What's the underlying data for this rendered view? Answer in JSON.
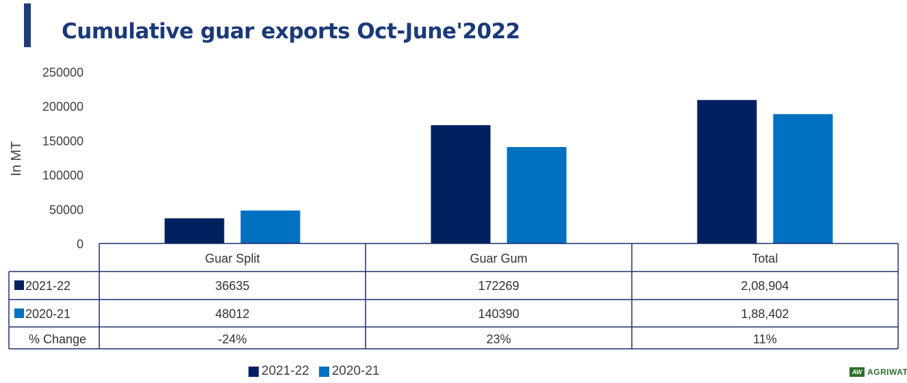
{
  "chart_data": {
    "type": "bar",
    "title": "Cumulative guar exports Oct-June'2022",
    "ylabel": "In MT",
    "ylim": [
      0,
      250000
    ],
    "yticks": [
      0,
      50000,
      100000,
      150000,
      200000,
      250000
    ],
    "categories": [
      "Guar Split",
      "Guar Gum",
      "Total"
    ],
    "series": [
      {
        "name": "2021-22",
        "values": [
          36635,
          172269,
          208904
        ],
        "labels": [
          "36635",
          "172269",
          "2,08,904"
        ],
        "color": "#002060"
      },
      {
        "name": "2020-21",
        "values": [
          48012,
          140390,
          188402
        ],
        "labels": [
          "48012",
          "140390",
          "1,88,402"
        ],
        "color": "#0070c0"
      }
    ],
    "table_extra_row": {
      "name": "% Change",
      "labels": [
        "-24%",
        "23%",
        "11%"
      ]
    },
    "legend": "bottom",
    "grid": false
  },
  "brand": {
    "logo_text": "AGRIWATCH",
    "logo_mark": "AW",
    "color": "#2b6e2b"
  },
  "accent_color": "#1f3b7a"
}
